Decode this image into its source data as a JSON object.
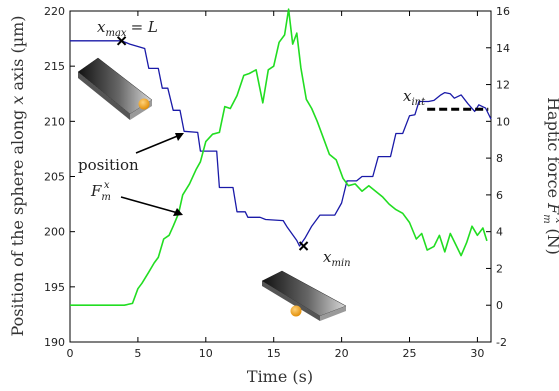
{
  "chart_data": {
    "type": "line",
    "xlabel": "Time (s)",
    "ylabel_left": "Position of the sphere along x axis (µm)",
    "ylabel_left_parts": {
      "pre": "Position of the sphere along ",
      "var": "x",
      "post": " axis (µm)"
    },
    "ylabel_right": "Haptic force F_m^x (N)",
    "ylabel_right_parts": {
      "pre": "Haptic force ",
      "var": "F",
      "sub": "m",
      "sup": "x",
      "post": " (N)"
    },
    "xlim": [
      0,
      31
    ],
    "ylim_left": [
      190,
      220
    ],
    "ylim_right": [
      -2,
      16
    ],
    "xticks": [
      0,
      5,
      10,
      15,
      20,
      25,
      30
    ],
    "yticks_left": [
      190,
      195,
      200,
      205,
      210,
      215,
      220
    ],
    "yticks_right": [
      -2,
      0,
      2,
      4,
      6,
      8,
      10,
      12,
      14,
      16
    ],
    "series": [
      {
        "label": "position",
        "axis": "left",
        "color": "#1a1aa8",
        "x": [
          0,
          3.8,
          4.4,
          5.5,
          5.8,
          6.5,
          6.8,
          7.2,
          7.6,
          8.1,
          8.4,
          9.4,
          9.6,
          10.8,
          11.0,
          12.0,
          12.3,
          12.9,
          13.1,
          14.0,
          14.4,
          15.7,
          16.0,
          16.7,
          16.9,
          17.3,
          17.8,
          18.4,
          19.5,
          20.0,
          20.4,
          21.1,
          21.5,
          22.3,
          22.7,
          23.6,
          24.0,
          24.5,
          25.0,
          25.4,
          25.7,
          26.4,
          26.8,
          27.3,
          27.6,
          28.0,
          28.3,
          28.8,
          29.3,
          29.8,
          30.1,
          30.6,
          31.0
        ],
        "y": [
          217.3,
          217.3,
          217.0,
          216.6,
          214.8,
          214.8,
          213.0,
          213.0,
          211.0,
          211.0,
          209.1,
          209.0,
          207.3,
          207.3,
          204.0,
          204.0,
          201.8,
          201.8,
          201.3,
          201.3,
          201.1,
          201.0,
          200.4,
          199.2,
          198.7,
          199.4,
          200.5,
          201.5,
          201.5,
          202.6,
          204.6,
          204.6,
          205.0,
          205.0,
          206.8,
          206.8,
          208.9,
          208.9,
          210.5,
          210.6,
          211.8,
          211.8,
          211.9,
          212.4,
          212.6,
          212.5,
          212.1,
          212.4,
          211.6,
          210.9,
          211.5,
          211.2,
          210.2
        ]
      },
      {
        "label": "F_m^x",
        "axis": "right",
        "color": "#22dd22",
        "x": [
          0,
          4.0,
          4.6,
          5.0,
          5.3,
          5.8,
          6.2,
          6.5,
          6.9,
          7.3,
          7.6,
          8.0,
          8.3,
          8.8,
          9.3,
          9.6,
          10.0,
          10.5,
          11.0,
          11.4,
          11.8,
          12.3,
          12.8,
          13.2,
          13.7,
          14.2,
          14.6,
          15.0,
          15.4,
          15.8,
          16.1,
          16.4,
          16.7,
          17.0,
          17.4,
          17.8,
          18.2,
          18.7,
          19.1,
          19.6,
          20.1,
          20.5,
          21.0,
          21.5,
          22.0,
          22.5,
          23.0,
          23.5,
          24.0,
          24.5,
          25.0,
          25.5,
          25.9,
          26.3,
          26.8,
          27.2,
          27.6,
          28.0,
          28.4,
          28.8,
          29.2,
          29.6,
          30.0,
          30.4,
          30.7
        ],
        "y": [
          0,
          0,
          0.1,
          0.9,
          1.2,
          1.8,
          2.3,
          2.6,
          3.6,
          3.8,
          4.3,
          5.0,
          6.0,
          6.6,
          7.4,
          7.8,
          8.9,
          9.3,
          9.4,
          10.8,
          10.7,
          11.4,
          12.5,
          12.6,
          12.8,
          11.0,
          12.8,
          13.0,
          14.3,
          14.7,
          16.1,
          14.2,
          14.8,
          12.9,
          11.2,
          10.7,
          10.0,
          9.0,
          8.2,
          7.9,
          6.9,
          6.5,
          6.6,
          6.2,
          6.5,
          6.2,
          5.9,
          5.5,
          5.2,
          5.0,
          4.5,
          3.6,
          3.9,
          3.0,
          3.2,
          3.8,
          2.9,
          3.9,
          3.3,
          2.7,
          3.4,
          4.3,
          3.8,
          4.2,
          3.5
        ]
      }
    ],
    "annotations": {
      "xmax": {
        "main": "x",
        "sub": "max",
        "rest": "= L",
        "x": 3.8,
        "y": 217.3
      },
      "xmin": {
        "main": "x",
        "sub": "min",
        "x": 17.2,
        "y": 198.7
      },
      "xint": {
        "main": "x",
        "sub": "int",
        "x_from": 26.3,
        "x_to": 30.8,
        "y": 211.1
      },
      "position_label": "position",
      "force_label": {
        "main": "F",
        "sub": "m",
        "sup": "x"
      }
    }
  }
}
